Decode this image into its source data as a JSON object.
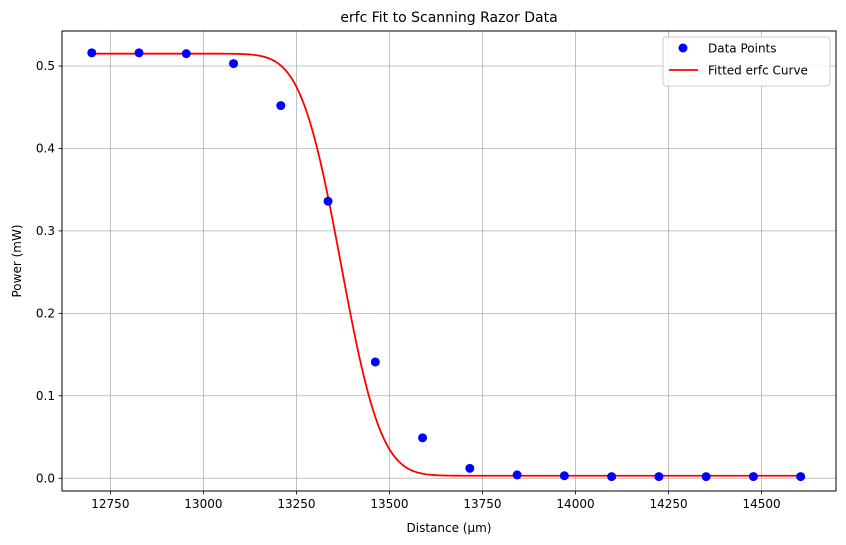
{
  "chart_data": {
    "type": "scatter",
    "title": "erfc Fit to Scanning Razor Data",
    "xlabel": "Distance (μm)",
    "ylabel": "Power (mW)",
    "xlim": [
      12620,
      14700
    ],
    "ylim": [
      -0.0155,
      0.5425
    ],
    "xticks": [
      12750,
      13000,
      13250,
      13500,
      13750,
      14000,
      14250,
      14500
    ],
    "yticks": [
      0.0,
      0.1,
      0.2,
      0.3,
      0.4,
      0.5
    ],
    "grid": true,
    "legend_position": "top-right",
    "series": [
      {
        "name": "Data Points",
        "kind": "scatter",
        "color": "#0000ff",
        "x": [
          12700,
          12827,
          12954,
          13081,
          13208,
          13335,
          13462,
          13589,
          13716,
          13843,
          13970,
          14097,
          14224,
          14351,
          14478,
          14605
        ],
        "y": [
          0.516,
          0.516,
          0.515,
          0.503,
          0.452,
          0.336,
          0.141,
          0.049,
          0.012,
          0.004,
          0.003,
          0.002,
          0.002,
          0.002,
          0.002,
          0.002
        ]
      },
      {
        "name": "Fitted erfc Curve",
        "kind": "line",
        "color": "#ff0000",
        "model": "A/2 * erfc((x - x0) / w) + c",
        "params": {
          "A": 0.512,
          "x0": 13370,
          "w": 120,
          "c": 0.003
        },
        "x_range": [
          12700,
          14605
        ]
      }
    ]
  }
}
